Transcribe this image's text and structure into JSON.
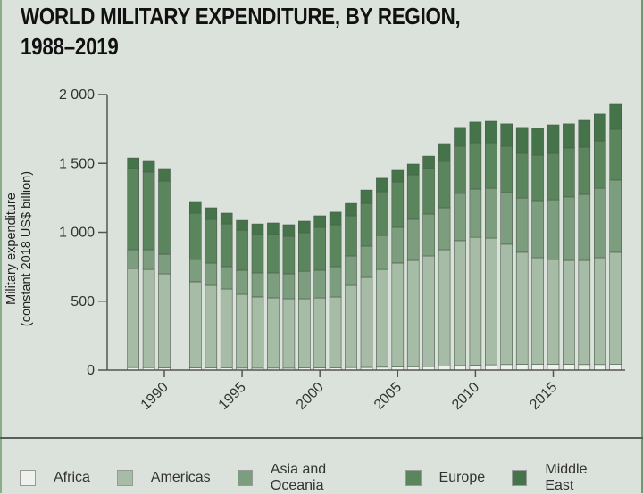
{
  "title_line1": "WORLD MILITARY EXPENDITURE, BY REGION,",
  "title_line2": "1988–2019",
  "colors": {
    "Africa": "#eef1ed",
    "Americas": "#a6bca6",
    "Asia and Oceania": "#7c9e7e",
    "Europe": "#5b865d",
    "Middle East": "#45734a",
    "axis": "#555555",
    "background": "#dbe2db"
  },
  "chart_data": {
    "type": "bar",
    "stacked": true,
    "title": "WORLD MILITARY EXPENDITURE, BY REGION, 1988–2019",
    "xlabel": "",
    "ylabel": "Military expenditure (constant 2018 US$ billion)",
    "ylabel_line1": "Military expenditure",
    "ylabel_line2": "(constant 2018 US$ billion)",
    "ylim": [
      0,
      2000
    ],
    "yticks": [
      0,
      500,
      1000,
      1500,
      2000
    ],
    "ytick_labels": [
      "0",
      "500",
      "1 000",
      "1 500",
      "2 000"
    ],
    "xticks": [
      1990,
      1995,
      2000,
      2005,
      2010,
      2015
    ],
    "xtick_labels": [
      "1990",
      "1995",
      "2000",
      "2005",
      "2010",
      "2015"
    ],
    "grid": false,
    "legend_position": "bottom",
    "categories": [
      1988,
      1989,
      1990,
      1992,
      1993,
      1994,
      1995,
      1996,
      1997,
      1998,
      1999,
      2000,
      2001,
      2002,
      2003,
      2004,
      2005,
      2006,
      2007,
      2008,
      2009,
      2010,
      2011,
      2012,
      2013,
      2014,
      2015,
      2016,
      2017,
      2018,
      2019
    ],
    "series": [
      {
        "name": "Africa",
        "values": [
          18,
          18,
          17,
          16,
          15,
          15,
          14,
          14,
          14,
          14,
          15,
          16,
          17,
          18,
          19,
          21,
          23,
          24,
          26,
          29,
          33,
          36,
          38,
          40,
          42,
          43,
          43,
          41,
          40,
          40,
          41
        ]
      },
      {
        "name": "Americas",
        "values": [
          720,
          713,
          682,
          625,
          600,
          574,
          536,
          517,
          510,
          504,
          503,
          508,
          514,
          597,
          654,
          710,
          754,
          772,
          803,
          845,
          906,
          928,
          920,
          873,
          813,
          773,
          760,
          755,
          756,
          776,
          814
        ]
      },
      {
        "name": "Asia and Oceania",
        "values": [
          136,
          143,
          142,
          162,
          162,
          162,
          175,
          175,
          182,
          181,
          200,
          201,
          220,
          214,
          227,
          246,
          259,
          298,
          304,
          304,
          343,
          350,
          362,
          375,
          394,
          414,
          433,
          460,
          479,
          504,
          524
        ]
      },
      {
        "name": "Europe",
        "values": [
          589,
          563,
          531,
          336,
          317,
          310,
          291,
          278,
          278,
          272,
          279,
          311,
          304,
          291,
          310,
          317,
          330,
          323,
          330,
          337,
          343,
          336,
          330,
          337,
          324,
          330,
          337,
          356,
          343,
          343,
          369
        ]
      },
      {
        "name": "Middle East",
        "values": [
          77,
          84,
          91,
          84,
          84,
          78,
          71,
          77,
          84,
          84,
          84,
          84,
          91,
          90,
          97,
          98,
          84,
          78,
          90,
          129,
          136,
          150,
          156,
          162,
          188,
          194,
          207,
          175,
          194,
          195,
          181
        ]
      }
    ]
  },
  "legend": [
    {
      "label": "Africa"
    },
    {
      "label": "Americas"
    },
    {
      "label": "Asia and Oceania"
    },
    {
      "label": "Europe"
    },
    {
      "label": "Middle East"
    }
  ]
}
